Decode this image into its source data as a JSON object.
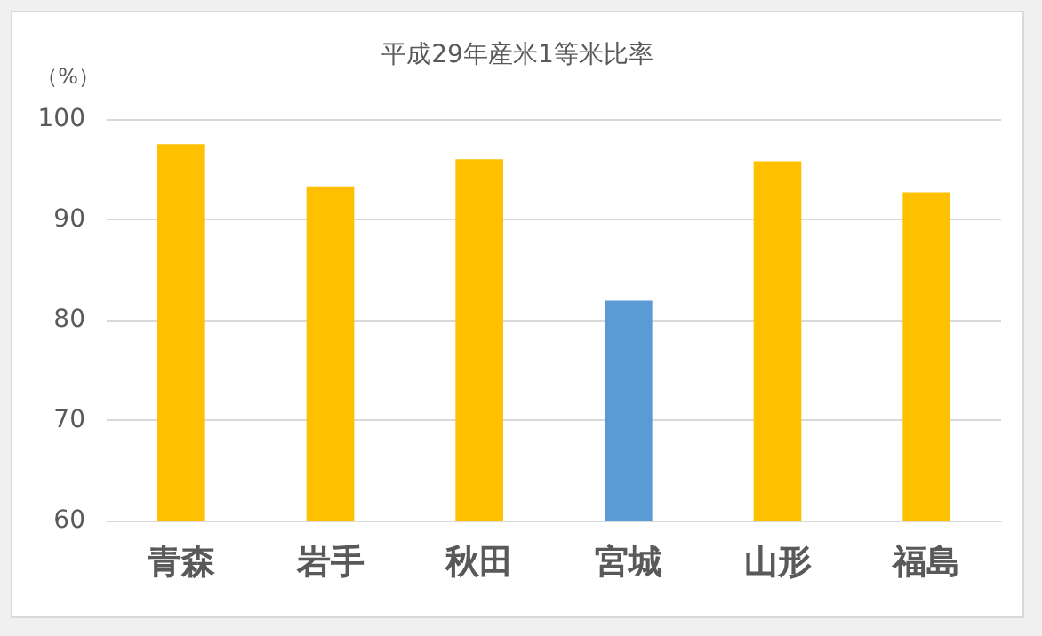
{
  "chart_data": {
    "type": "bar",
    "title": "平成29年産米1等米比率",
    "ylabel": "（%）",
    "categories": [
      "青森",
      "岩手",
      "秋田",
      "宮城",
      "山形",
      "福島"
    ],
    "values": [
      97.5,
      93.3,
      96.0,
      81.9,
      95.8,
      92.7
    ],
    "colors": [
      "#ffc000",
      "#ffc000",
      "#ffc000",
      "#5b9bd5",
      "#ffc000",
      "#ffc000"
    ],
    "ylim": [
      60,
      100
    ],
    "yticks": [
      60,
      70,
      80,
      90,
      100
    ],
    "grid": "y"
  }
}
